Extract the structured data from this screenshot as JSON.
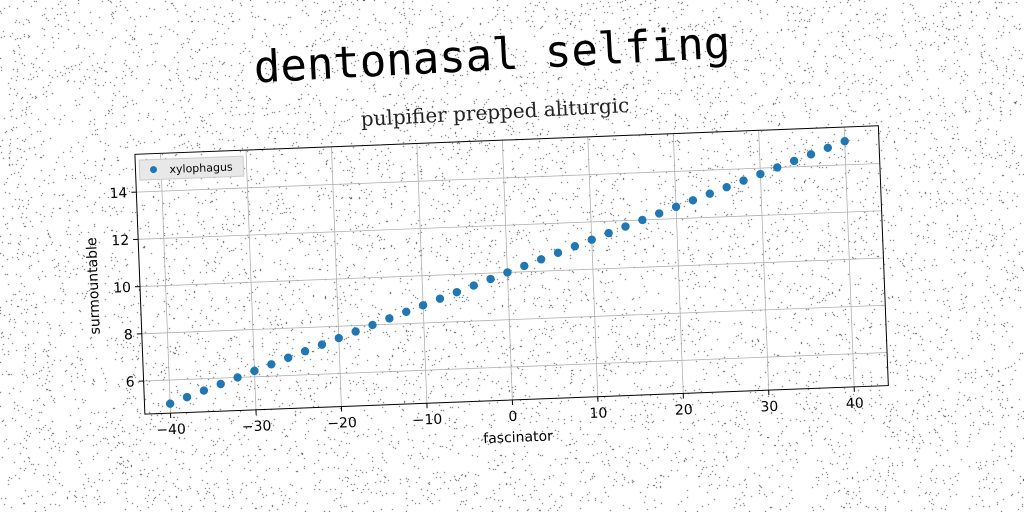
{
  "title": "dentonasal selfing",
  "subtitle": "pulpifier prepped aliturgic",
  "chart_data": {
    "type": "scatter",
    "title": "dentonasal selfing",
    "subtitle": "pulpifier prepped aliturgic",
    "xlabel": "fascinator",
    "ylabel": "surmountable",
    "xlim": [
      -43,
      44
    ],
    "ylim": [
      4.6,
      15.6
    ],
    "xticks": [
      -40,
      -30,
      -20,
      -10,
      0,
      10,
      20,
      30,
      40
    ],
    "yticks": [
      6,
      8,
      10,
      12,
      14
    ],
    "xtick_labels": [
      "−40",
      "−30",
      "−20",
      "−10",
      "0",
      "10",
      "20",
      "30",
      "40"
    ],
    "ytick_labels": [
      "6",
      "8",
      "10",
      "12",
      "14"
    ],
    "grid": true,
    "legend_position": "upper-left",
    "color": "#1f77b4",
    "series": [
      {
        "name": "xylophagus",
        "x": [
          -40,
          -38,
          -36,
          -34,
          -32,
          -30,
          -28,
          -26,
          -24,
          -22,
          -20,
          -18,
          -16,
          -14,
          -12,
          -10,
          -8,
          -6,
          -4,
          -2,
          0,
          2,
          4,
          6,
          8,
          10,
          12,
          14,
          16,
          18,
          20,
          22,
          24,
          26,
          28,
          30,
          32,
          34,
          36,
          38,
          40
        ],
        "y": [
          5.0,
          5.25,
          5.5,
          5.75,
          6.0,
          6.25,
          6.5,
          6.75,
          7.0,
          7.25,
          7.5,
          7.75,
          8.0,
          8.25,
          8.5,
          8.75,
          9.0,
          9.25,
          9.5,
          9.75,
          10.0,
          10.25,
          10.5,
          10.75,
          11.0,
          11.25,
          11.5,
          11.75,
          12.0,
          12.25,
          12.5,
          12.75,
          13.0,
          13.25,
          13.5,
          13.75,
          14.0,
          14.25,
          14.5,
          14.75,
          15.0
        ]
      }
    ]
  }
}
